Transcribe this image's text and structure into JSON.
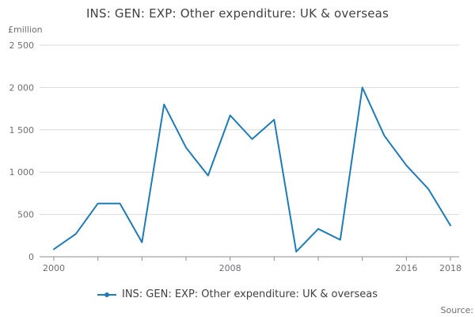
{
  "chart": {
    "title": "INS: GEN: EXP: Other expenditure: UK & overseas",
    "y_unit": "£million",
    "legend_label": "INS: GEN: EXP: Other expenditure: UK & overseas",
    "source_label": "Source:"
  },
  "chart_data": {
    "type": "line",
    "title": "INS: GEN: EXP: Other expenditure: UK & overseas",
    "ylabel": "£million",
    "xlabel": "",
    "x": [
      2000,
      2001,
      2002,
      2003,
      2004,
      2005,
      2006,
      2007,
      2008,
      2009,
      2010,
      2011,
      2012,
      2013,
      2014,
      2015,
      2016,
      2017,
      2018
    ],
    "values": [
      90,
      270,
      630,
      630,
      170,
      1800,
      1290,
      960,
      1670,
      1390,
      1620,
      60,
      330,
      200,
      2000,
      1430,
      1080,
      800,
      370
    ],
    "series_name": "INS: GEN: EXP: Other expenditure: UK & overseas",
    "xlim": [
      2000,
      2018
    ],
    "ylim": [
      0,
      2500
    ],
    "yticks": [
      0,
      500,
      1000,
      1500,
      2000,
      2500
    ],
    "ytick_labels": [
      "0",
      "500",
      "1 000",
      "1 500",
      "2 000",
      "2 500"
    ],
    "xticks_minor": [
      2000,
      2002,
      2004,
      2006,
      2008,
      2010,
      2012,
      2014,
      2016,
      2018
    ],
    "xticks_labeled": [
      2000,
      2008,
      2016,
      2018
    ],
    "grid": true,
    "legend_position": "bottom",
    "line_color": "#1f7bb6",
    "grid_color": "#d9d9d9",
    "axis_color": "#8c8c8c",
    "tick_text_color": "#6d6e71"
  }
}
